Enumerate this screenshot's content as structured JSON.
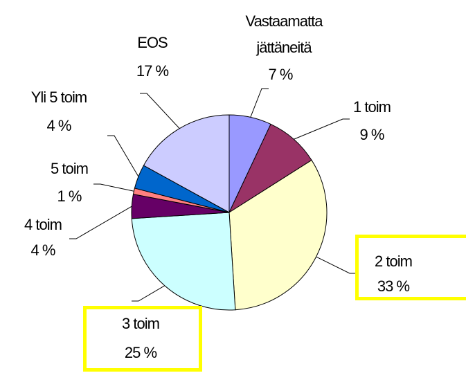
{
  "chart_data": {
    "type": "pie",
    "categories": [
      "Vastaamatta jättäneitä",
      "1 toim",
      "2 toim",
      "3 toim",
      "4 toim",
      "5 toim",
      "Yli 5 toim",
      "EOS"
    ],
    "values": [
      7,
      9,
      33,
      25,
      4,
      1,
      4,
      17
    ],
    "value_labels": [
      "7 %",
      "9 %",
      "33 %",
      "25 %",
      "4 %",
      "1 %",
      "4 %",
      "17 %"
    ],
    "colors": [
      "#9999ff",
      "#993366",
      "#ffffcc",
      "#ccffff",
      "#660066",
      "#ff8080",
      "#0066cc",
      "#ccccff"
    ]
  }
}
